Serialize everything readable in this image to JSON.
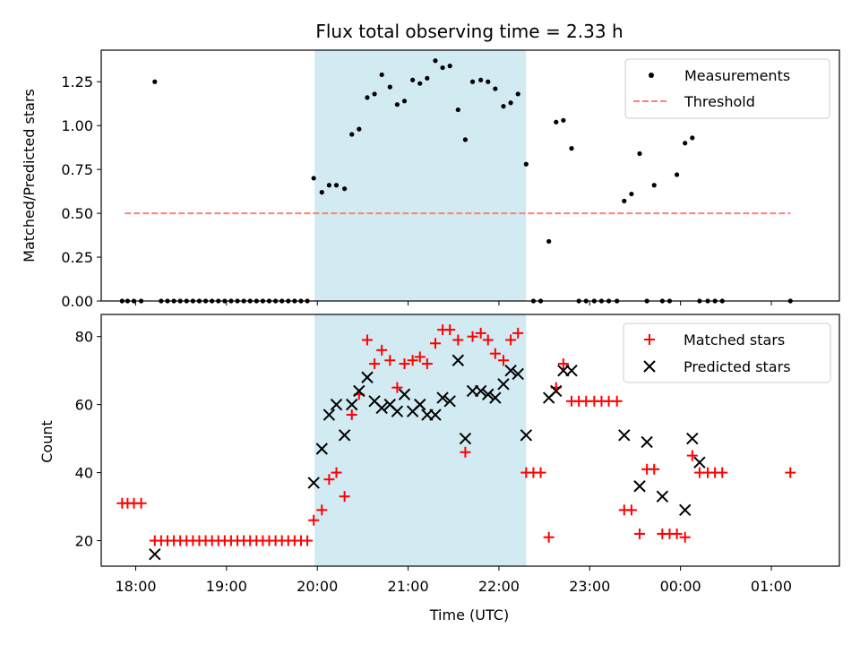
{
  "colors": {
    "measurement": "#000000",
    "threshold": "#ff7f7f",
    "matched": "#ff0000",
    "predicted": "#000000",
    "shade": "#add8e6"
  },
  "chart_data": [
    {
      "type": "scatter",
      "title": "Flux total observing time = 2.33 h",
      "xlabel": "",
      "ylabel": "Matched/Predicted stars",
      "xlim": [
        17.62,
        1.75
      ],
      "ylim": [
        0.0,
        1.43
      ],
      "yticks": [
        "0.00",
        "0.25",
        "0.50",
        "0.75",
        "1.00",
        "1.25"
      ],
      "yticks_values": [
        0,
        0.25,
        0.5,
        0.75,
        1.0,
        1.25
      ],
      "shaded_region": [
        19.97,
        22.3
      ],
      "legend": [
        "Measurements",
        "Threshold"
      ],
      "threshold": {
        "name": "Threshold",
        "value": 0.5,
        "x_range": [
          17.88,
          25.21
        ]
      },
      "series": [
        {
          "name": "Measurements",
          "x": [
            17.85,
            17.91,
            17.98,
            18.06,
            18.21,
            18.28,
            18.35,
            18.42,
            18.49,
            18.56,
            18.63,
            18.7,
            18.77,
            18.84,
            18.91,
            18.98,
            19.05,
            19.12,
            19.19,
            19.26,
            19.33,
            19.4,
            19.47,
            19.54,
            19.61,
            19.68,
            19.75,
            19.82,
            19.89,
            19.96,
            20.05,
            20.13,
            20.21,
            20.3,
            20.38,
            20.46,
            20.55,
            20.63,
            20.71,
            20.8,
            20.88,
            20.96,
            21.05,
            21.13,
            21.21,
            21.3,
            21.38,
            21.46,
            21.55,
            21.63,
            21.71,
            21.8,
            21.88,
            21.96,
            22.05,
            22.13,
            22.21,
            22.3,
            22.38,
            22.46,
            22.55,
            22.63,
            22.71,
            22.8,
            22.88,
            22.96,
            23.05,
            23.13,
            23.21,
            23.3,
            23.38,
            23.46,
            23.55,
            23.63,
            23.71,
            23.8,
            23.88,
            23.96,
            24.05,
            24.13,
            24.21,
            24.3,
            24.38,
            24.46,
            25.21
          ],
          "y": [
            0,
            0,
            0,
            0,
            1.25,
            0,
            0,
            0,
            0,
            0,
            0,
            0,
            0,
            0,
            0,
            0,
            0,
            0,
            0,
            0,
            0,
            0,
            0,
            0,
            0,
            0,
            0,
            0,
            0,
            0.7,
            0.62,
            0.66,
            0.66,
            0.64,
            0.95,
            0.98,
            1.16,
            1.18,
            1.29,
            1.22,
            1.12,
            1.14,
            1.26,
            1.24,
            1.27,
            1.37,
            1.33,
            1.34,
            1.09,
            0.92,
            1.25,
            1.26,
            1.25,
            1.21,
            1.11,
            1.13,
            1.18,
            0.78,
            0,
            0,
            0.34,
            1.02,
            1.03,
            0.87,
            0,
            0,
            0,
            0,
            0,
            0,
            0.57,
            0.61,
            0.84,
            0,
            0.66,
            0,
            0,
            0.72,
            0.9,
            0.93,
            0,
            0,
            0,
            0,
            0
          ]
        }
      ]
    },
    {
      "type": "scatter",
      "title": "",
      "xlabel": "Time (UTC)",
      "ylabel": "Count",
      "xlim": [
        17.62,
        1.75
      ],
      "ylim": [
        12.5,
        86.5
      ],
      "yticks": [
        "20",
        "40",
        "60",
        "80"
      ],
      "yticks_values": [
        20,
        40,
        60,
        80
      ],
      "xticks": [
        "18:00",
        "19:00",
        "20:00",
        "21:00",
        "22:00",
        "23:00",
        "00:00",
        "01:00"
      ],
      "xticks_values": [
        18,
        19,
        20,
        21,
        22,
        23,
        24,
        25
      ],
      "shaded_region": [
        19.97,
        22.3
      ],
      "legend": [
        "Matched stars",
        "Predicted stars"
      ],
      "series": [
        {
          "name": "Matched stars",
          "x": [
            17.85,
            17.91,
            17.98,
            18.06,
            18.21,
            18.28,
            18.35,
            18.42,
            18.49,
            18.56,
            18.63,
            18.7,
            18.77,
            18.84,
            18.91,
            18.98,
            19.05,
            19.12,
            19.19,
            19.26,
            19.33,
            19.4,
            19.47,
            19.54,
            19.61,
            19.68,
            19.75,
            19.82,
            19.89,
            19.96,
            20.05,
            20.13,
            20.21,
            20.3,
            20.38,
            20.46,
            20.55,
            20.63,
            20.71,
            20.8,
            20.88,
            20.96,
            21.05,
            21.13,
            21.21,
            21.3,
            21.38,
            21.46,
            21.55,
            21.63,
            21.71,
            21.8,
            21.88,
            21.96,
            22.05,
            22.13,
            22.21,
            22.3,
            22.38,
            22.46,
            22.55,
            22.63,
            22.71,
            22.8,
            22.88,
            22.96,
            23.05,
            23.13,
            23.21,
            23.3,
            23.38,
            23.46,
            23.55,
            23.63,
            23.71,
            23.8,
            23.88,
            23.96,
            24.05,
            24.13,
            24.21,
            24.3,
            24.38,
            24.46,
            25.21
          ],
          "y": [
            31,
            31,
            31,
            31,
            20,
            20,
            20,
            20,
            20,
            20,
            20,
            20,
            20,
            20,
            20,
            20,
            20,
            20,
            20,
            20,
            20,
            20,
            20,
            20,
            20,
            20,
            20,
            20,
            20,
            26,
            29,
            38,
            40,
            33,
            57,
            63,
            79,
            72,
            76,
            73,
            65,
            72,
            73,
            74,
            72,
            78,
            82,
            82,
            79,
            46,
            80,
            81,
            79,
            75,
            73,
            79,
            81,
            40,
            40,
            40,
            21,
            65,
            72,
            61,
            61,
            61,
            61,
            61,
            61,
            61,
            29,
            29,
            22,
            41,
            41,
            22,
            22,
            22,
            21,
            45,
            40,
            40,
            40,
            40,
            40
          ]
        },
        {
          "name": "Predicted stars",
          "x": [
            18.21,
            19.96,
            20.05,
            20.13,
            20.21,
            20.3,
            20.38,
            20.46,
            20.55,
            20.63,
            20.71,
            20.8,
            20.88,
            20.96,
            21.05,
            21.13,
            21.21,
            21.3,
            21.38,
            21.46,
            21.55,
            21.63,
            21.71,
            21.8,
            21.88,
            21.96,
            22.05,
            22.13,
            22.21,
            22.3,
            22.55,
            22.63,
            22.71,
            22.8,
            23.38,
            23.55,
            23.63,
            23.8,
            24.05,
            24.13,
            24.21
          ],
          "y": [
            16,
            37,
            47,
            57,
            60,
            51,
            60,
            64,
            68,
            61,
            59,
            60,
            58,
            63,
            58,
            60,
            57,
            57,
            62,
            61,
            73,
            50,
            64,
            64,
            63,
            62,
            66,
            70,
            69,
            51,
            62,
            64,
            70,
            70,
            51,
            36,
            49,
            33,
            29,
            50,
            43
          ]
        }
      ]
    }
  ]
}
